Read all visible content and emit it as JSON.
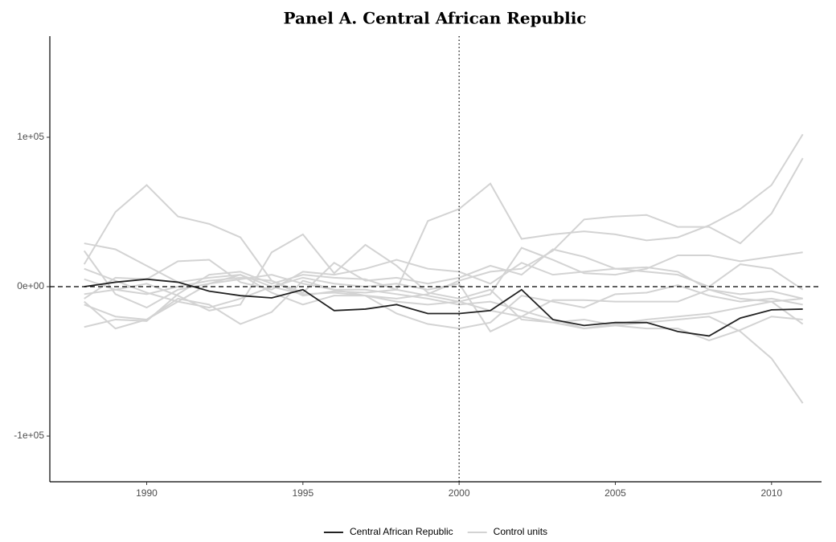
{
  "chart_data": {
    "type": "line",
    "title": "Panel A. Central African Republic",
    "x": [
      1988,
      1989,
      1990,
      1991,
      1992,
      1993,
      1994,
      1995,
      1996,
      1997,
      1998,
      1999,
      2000,
      2001,
      2002,
      2003,
      2004,
      2005,
      2006,
      2007,
      2008,
      2009,
      2010,
      2011
    ],
    "series": [
      {
        "name": "Central African Republic",
        "color": "#222222",
        "values": [
          0,
          3000,
          5000,
          3000,
          -3000,
          -6000,
          -7500,
          -2000,
          -16000,
          -15000,
          -12000,
          -18000,
          -18000,
          -16000,
          -2000,
          -22000,
          -26000,
          -24000,
          -24000,
          -30000,
          -33000,
          -21000,
          -15500,
          -15000
        ]
      },
      {
        "name": "Control units",
        "color": "#d3d3d3",
        "values": [
          [
            15000,
            50000,
            68000,
            47000,
            42000,
            33000,
            4000,
            -6000,
            -3000,
            -4000,
            -2000,
            -6000,
            -10000,
            -16000,
            -20000,
            -24000,
            -28000,
            -25000,
            -22000,
            -20000,
            -18000,
            -14000,
            -10000,
            -8000
          ],
          [
            -27000,
            -22000,
            -23000,
            -5000,
            8000,
            10000,
            2000,
            8000,
            6000,
            5000,
            -2000,
            44000,
            52000,
            69000,
            32000,
            35000,
            37000,
            35000,
            31000,
            33000,
            41000,
            52000,
            68000,
            102000
          ],
          [
            24000,
            -5000,
            -14000,
            -2000,
            2000,
            5000,
            8000,
            2000,
            -2000,
            -6000,
            -8000,
            -5000,
            4000,
            10000,
            12000,
            24000,
            45000,
            47000,
            48000,
            40000,
            40000,
            29000,
            49000,
            86000
          ],
          [
            -10000,
            -28000,
            -22000,
            -8000,
            -12000,
            -25000,
            -17000,
            4000,
            -2000,
            -2000,
            -5000,
            -8000,
            -12000,
            -10000,
            -16000,
            -22000,
            -28000,
            -26000,
            -24000,
            -22000,
            -20000,
            -30000,
            -48000,
            -78000
          ],
          [
            -5000,
            -2000,
            2000,
            -6000,
            -16000,
            -12000,
            23000,
            35000,
            9000,
            28000,
            14000,
            -4000,
            -8000,
            -2000,
            -22000,
            -24000,
            -22000,
            -26000,
            -28000,
            -28000,
            -36000,
            -29000,
            -20000,
            -22000
          ],
          [
            29000,
            25000,
            14000,
            3000,
            6000,
            8000,
            -4000,
            -12000,
            -6000,
            -6000,
            -10000,
            -12000,
            -10000,
            -5000,
            26000,
            18000,
            9000,
            8000,
            12000,
            21000,
            21000,
            17000,
            20000,
            23000
          ],
          [
            -8000,
            6000,
            5000,
            17000,
            18000,
            3000,
            -2000,
            10000,
            8000,
            12000,
            18000,
            12000,
            10000,
            2000,
            16000,
            8000,
            10000,
            12000,
            10000,
            8000,
            0,
            15000,
            12000,
            -2000
          ],
          [
            5000,
            -2000,
            -5000,
            0,
            4000,
            6000,
            4000,
            -4000,
            16000,
            4000,
            6000,
            2000,
            6000,
            14000,
            8000,
            25000,
            20000,
            12000,
            13000,
            10000,
            -2000,
            -8000,
            -10000,
            -25000
          ],
          [
            12000,
            4000,
            -4000,
            -10000,
            -14000,
            -8000,
            0,
            -5000,
            -4000,
            -6000,
            -18000,
            -25000,
            -28000,
            -24000,
            -6000,
            -10000,
            -14000,
            -5000,
            -4000,
            1000,
            -6000,
            -10000,
            -8000,
            -12000
          ],
          [
            -12000,
            -20000,
            -22000,
            -10000,
            2000,
            8000,
            0,
            6000,
            2000,
            0,
            2000,
            -2000,
            2000,
            -30000,
            -20000,
            -9000,
            -9000,
            -10000,
            -10000,
            -10000,
            -2000,
            -5000,
            -3000,
            -8000
          ]
        ]
      }
    ],
    "xlim": [
      1986.9,
      2011.6
    ],
    "xticks": [
      1990,
      1995,
      2000,
      2005,
      2010
    ],
    "ylim": [
      -130600,
      167700
    ],
    "yticks": [
      {
        "value": -100000,
        "label": "-1e+05"
      },
      {
        "value": 0,
        "label": "0e+00"
      },
      {
        "value": 100000,
        "label": "1e+05"
      }
    ],
    "hline": 0,
    "vline": 2000,
    "grid": false,
    "legend": "bottom"
  }
}
